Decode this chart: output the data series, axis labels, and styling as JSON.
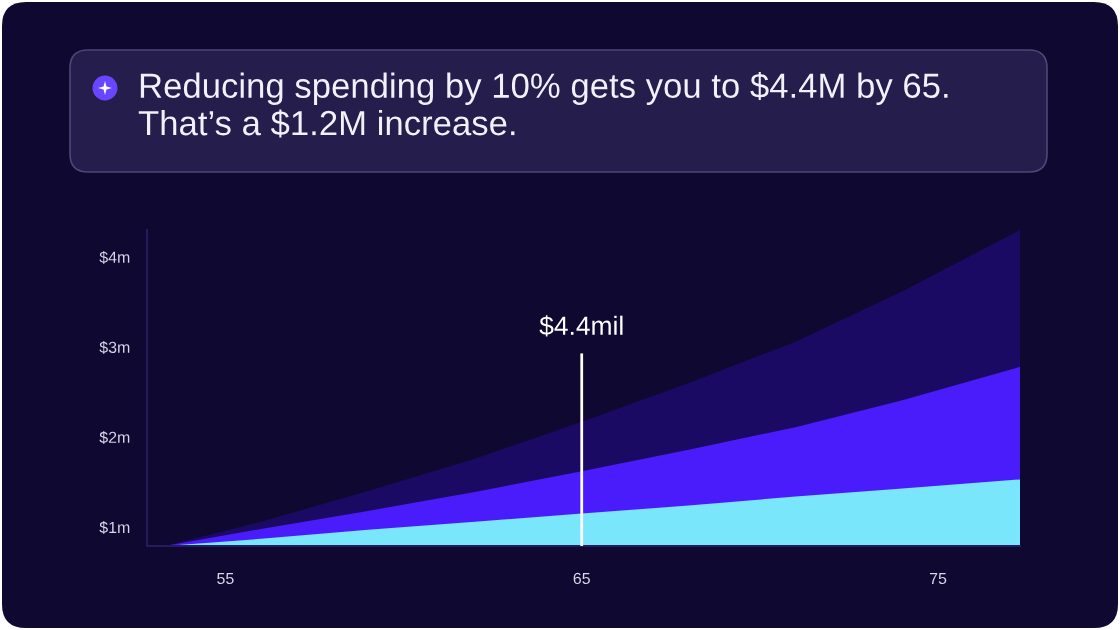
{
  "chart_data": {
    "type": "area",
    "title": "Reducing spending by 10% gets you to $4.4M by 65. That’s a $1.2M increase.",
    "series": [
      {
        "color": "#1b0a63",
        "x": [
          53.3,
          56,
          59,
          62,
          65,
          68,
          71,
          74,
          77.3
        ],
        "values": [
          0.79,
          1.06,
          1.4,
          1.76,
          2.17,
          2.6,
          3.06,
          3.62,
          4.3
        ]
      },
      {
        "color": "#4a1cfb",
        "x": [
          53.3,
          56,
          59,
          62,
          65,
          68,
          71,
          74,
          77.3
        ],
        "values": [
          0.79,
          0.98,
          1.18,
          1.39,
          1.62,
          1.86,
          2.11,
          2.41,
          2.78
        ]
      },
      {
        "color": "#7ae6fb",
        "x": [
          53.3,
          56,
          59,
          62,
          65,
          68,
          71,
          74,
          77.3
        ],
        "values": [
          0.79,
          0.87,
          0.97,
          1.06,
          1.15,
          1.24,
          1.34,
          1.43,
          1.53
        ]
      }
    ],
    "xlim": [
      52.8,
      77.3
    ],
    "ylim": [
      0.79,
      4.3
    ],
    "xticks": [
      55,
      65,
      75
    ],
    "yticks": [
      {
        "value": 1,
        "label": "$1m"
      },
      {
        "value": 2,
        "label": "$2m"
      },
      {
        "value": 3,
        "label": "$3m"
      },
      {
        "value": 4,
        "label": "$4m"
      }
    ],
    "ref_lines": [
      {
        "axis": "x",
        "value": 65,
        "label": "$4.4mil",
        "color": "#ffffff",
        "line_style": "solid"
      }
    ]
  }
}
